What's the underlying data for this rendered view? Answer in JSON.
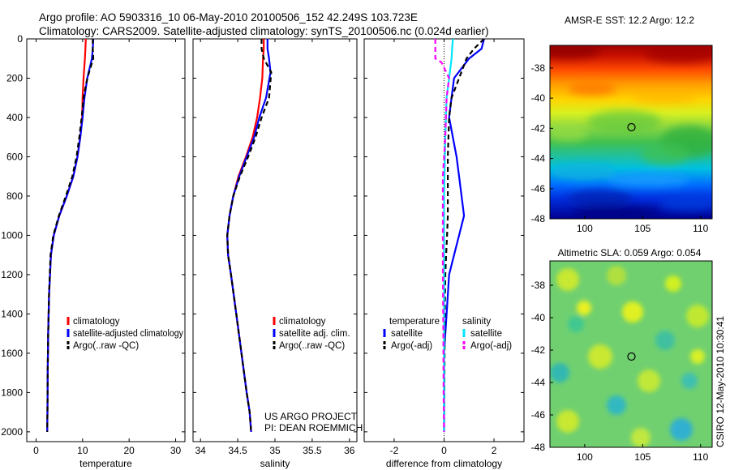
{
  "header": {
    "line1": "Argo profile: AO 5903316_10 06-May-2010 20100506_152 42.249S 103.723E",
    "line2": "Climatology: CARS2009. Satellite-adjusted climatology: synTS_20100506.nc (0.024d earlier)"
  },
  "footer": {
    "project": "US ARGO PROJECT",
    "pi": "PI: DEAN ROEMMICH",
    "credit": "CSIRO 12-May-2010 10:30:41"
  },
  "colors": {
    "climatology": "#ff0000",
    "satellite": "#0000ff",
    "argo": "#000000",
    "sat_salinity": "#00e5ff",
    "argo_salinity": "#ff00ff",
    "zero_line": "#000000"
  },
  "chart_data": [
    {
      "type": "line",
      "xlabel": "temperature",
      "ylabel": "",
      "xlim": [
        -2,
        32
      ],
      "ylim": [
        2050,
        0
      ],
      "xticks": [
        0,
        10,
        20,
        30
      ],
      "yticks": [
        0,
        200,
        400,
        600,
        800,
        1000,
        1200,
        1400,
        1600,
        1800,
        2000
      ],
      "legend_placement": "bottom-right",
      "series": [
        {
          "name": "climatology",
          "color": "climatology",
          "dash": "solid",
          "x": [
            10.7,
            10.6,
            10.5,
            10.2,
            10.0,
            9.9,
            9.5,
            8.9,
            8.0,
            6.6,
            5.0,
            3.8,
            3.2,
            2.8,
            2.6,
            2.5,
            2.45,
            2.4
          ],
          "y": [
            0,
            50,
            100,
            200,
            300,
            400,
            500,
            600,
            700,
            800,
            900,
            1000,
            1100,
            1300,
            1500,
            1700,
            1900,
            2000
          ]
        },
        {
          "name": "satellite-adjusted climatology",
          "color": "satellite",
          "dash": "solid",
          "x": [
            12.3,
            12.2,
            12.0,
            11.0,
            10.4,
            10.0,
            9.5,
            8.9,
            8.0,
            6.6,
            5.0,
            3.8,
            3.2,
            2.8,
            2.6,
            2.5,
            2.45,
            2.4
          ],
          "y": [
            0,
            50,
            100,
            200,
            300,
            400,
            500,
            600,
            700,
            800,
            900,
            1000,
            1100,
            1300,
            1500,
            1700,
            1900,
            2000
          ]
        },
        {
          "name": "Argo(..raw -QC)",
          "color": "argo",
          "dash": "dashed",
          "x": [
            12.2,
            12.2,
            12.3,
            11.0,
            10.2,
            9.8,
            9.3,
            8.7,
            7.8,
            6.4,
            4.9,
            3.7,
            3.1,
            2.8,
            2.6,
            2.5,
            2.45,
            2.4
          ],
          "y": [
            0,
            50,
            100,
            200,
            300,
            400,
            500,
            600,
            700,
            800,
            900,
            1000,
            1100,
            1300,
            1500,
            1700,
            1900,
            2000
          ]
        }
      ]
    },
    {
      "type": "line",
      "xlabel": "salinity",
      "ylabel": "",
      "xlim": [
        33.9,
        36.1
      ],
      "ylim": [
        2050,
        0
      ],
      "xticks": [
        34,
        34.5,
        35,
        35.5,
        36
      ],
      "yticks": [
        0,
        200,
        400,
        600,
        800,
        1000,
        1200,
        1400,
        1600,
        1800,
        2000
      ],
      "legend_placement": "bottom-right",
      "series": [
        {
          "name": "climatology",
          "color": "climatology",
          "dash": "solid",
          "x": [
            34.85,
            34.85,
            34.84,
            34.83,
            34.8,
            34.76,
            34.7,
            34.61,
            34.51,
            34.44,
            34.39,
            34.36,
            34.37,
            34.41,
            34.48,
            34.55,
            34.62,
            34.66,
            34.68
          ],
          "y": [
            0,
            50,
            100,
            200,
            300,
            400,
            500,
            600,
            700,
            800,
            900,
            1000,
            1100,
            1200,
            1400,
            1600,
            1800,
            1900,
            2000
          ]
        },
        {
          "name": "satellite adj. clim.",
          "color": "satellite",
          "dash": "solid",
          "x": [
            34.9,
            34.9,
            34.92,
            34.94,
            34.88,
            34.79,
            34.72,
            34.62,
            34.52,
            34.44,
            34.39,
            34.36,
            34.37,
            34.41,
            34.48,
            34.55,
            34.62,
            34.66,
            34.68
          ],
          "y": [
            0,
            50,
            100,
            170,
            300,
            400,
            500,
            600,
            700,
            800,
            900,
            1000,
            1100,
            1200,
            1400,
            1600,
            1800,
            1900,
            2000
          ]
        },
        {
          "name": "Argo(..raw -QC)",
          "color": "argo",
          "dash": "dashed",
          "x": [
            34.82,
            34.82,
            34.85,
            34.95,
            34.92,
            34.82,
            34.74,
            34.64,
            34.53,
            34.44,
            34.39,
            34.36,
            34.37,
            34.41,
            34.48,
            34.55,
            34.62,
            34.66,
            34.68
          ],
          "y": [
            0,
            50,
            100,
            170,
            300,
            400,
            500,
            600,
            700,
            800,
            900,
            1000,
            1100,
            1200,
            1400,
            1600,
            1800,
            1900,
            2000
          ]
        }
      ]
    },
    {
      "type": "line",
      "xlabel": "difference from climatology",
      "ylabel": "",
      "xlim": [
        -3.2,
        3.2
      ],
      "ylim": [
        2050,
        0
      ],
      "xticks": [
        -2,
        0,
        2
      ],
      "yticks": [
        0,
        200,
        400,
        600,
        800,
        1000,
        1200,
        1400,
        1600,
        1800,
        2000
      ],
      "legend_placement": "bottom",
      "legend_headers": [
        "temperature",
        "salinity"
      ],
      "series": [
        {
          "name": "satellite",
          "group": "temperature",
          "color": "satellite",
          "dash": "solid",
          "x": [
            1.6,
            1.5,
            1.0,
            0.4,
            0.3,
            0.2,
            0.5,
            0.6,
            0.8,
            0.6,
            0.4,
            0.2,
            0.1,
            0.0,
            0.0,
            0.0
          ],
          "y": [
            0,
            50,
            100,
            200,
            300,
            400,
            600,
            700,
            900,
            1000,
            1100,
            1200,
            1400,
            1600,
            1800,
            2000
          ]
        },
        {
          "name": "Argo(-adj)",
          "group": "temperature",
          "color": "argo",
          "dash": "dashed",
          "x": [
            1.6,
            1.2,
            0.9,
            0.6,
            0.3,
            0.2,
            0.15,
            0.15,
            0.15,
            0.12,
            0.08,
            0.05,
            0.03,
            0.02,
            0.01,
            0.0
          ],
          "y": [
            0,
            50,
            100,
            200,
            300,
            400,
            600,
            700,
            900,
            1000,
            1100,
            1200,
            1400,
            1600,
            1800,
            2000
          ]
        },
        {
          "name": "satellite",
          "group": "salinity",
          "color": "sat_salinity",
          "dash": "solid",
          "x": [
            0.35,
            0.3,
            0.25,
            0.1,
            0.05,
            0.0,
            0.0,
            0.0,
            0.0
          ],
          "y": [
            0,
            100,
            150,
            300,
            500,
            800,
            1200,
            1600,
            2000
          ]
        },
        {
          "name": "Argo(-adj)",
          "group": "salinity",
          "color": "argo_salinity",
          "dash": "dashed",
          "x": [
            -0.35,
            -0.35,
            -0.1,
            0.2,
            0.1,
            0.05,
            -0.05,
            -0.05,
            -0.05,
            -0.03,
            -0.02,
            0.0
          ],
          "y": [
            0,
            100,
            120,
            200,
            300,
            500,
            700,
            900,
            1200,
            1500,
            1800,
            2000
          ]
        }
      ]
    },
    {
      "type": "heatmap",
      "title": "AMSR-E SST: 12.2 Argo: 12.2",
      "xlim": [
        97,
        111
      ],
      "ylim": [
        -48,
        -36.5
      ],
      "xticks": [
        100,
        105,
        110
      ],
      "yticks": [
        -38,
        -40,
        -42,
        -44,
        -46,
        -48
      ],
      "colormap": "jet",
      "marker": {
        "lon": 103.723,
        "lat": -42.249
      }
    },
    {
      "type": "heatmap",
      "title": "Altimetric SLA: 0.059 Argo: 0.054",
      "xlim": [
        97,
        111
      ],
      "ylim": [
        -48,
        -36.5
      ],
      "xticks": [
        100,
        105,
        110
      ],
      "yticks": [
        -38,
        -40,
        -42,
        -44,
        -46,
        -48
      ],
      "colormap": "jet",
      "marker": {
        "lon": 103.723,
        "lat": -42.249
      }
    }
  ]
}
